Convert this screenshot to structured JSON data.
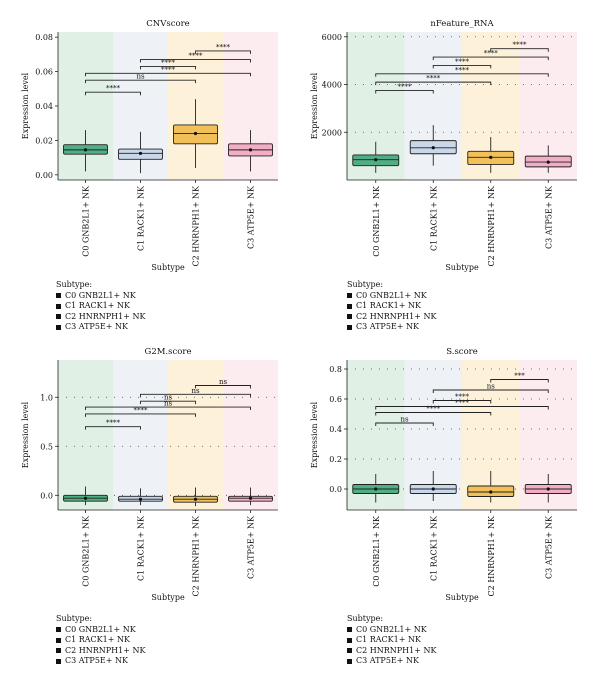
{
  "palette": {
    "fills": [
      "#4fae83",
      "#c9d7ea",
      "#f2c058",
      "#f4adc6"
    ],
    "bands": [
      "#e0f0e5",
      "#eef2f7",
      "#fdf1da",
      "#fcecef"
    ]
  },
  "legend_title": "Subtype:",
  "legend_items": [
    "C0 GNB2L1+ NK",
    "C1 RACK1+ NK",
    "C2 HNRNPH1+ NK",
    "C3 ATP5E+ NK"
  ],
  "chart_data": [
    {
      "type": "box",
      "title": "CNVscore",
      "xlabel": "Subtype",
      "ylabel": "Expression level",
      "categories": [
        "C0 GNB2L1+ NK",
        "C1 RACK1+ NK",
        "C2 HNRNPH1+ NK",
        "C3 ATP5E+ NK"
      ],
      "ylim": [
        -0.003,
        0.083
      ],
      "yticks": [
        0.0,
        0.02,
        0.04,
        0.06,
        0.08
      ],
      "ytick_labels": [
        "0.00",
        "0.02",
        "0.04",
        "0.06",
        "0.08"
      ],
      "grid": false,
      "boxes": [
        {
          "whisker_low": 0.002,
          "q1": 0.012,
          "median": 0.0145,
          "q3": 0.0175,
          "whisker_high": 0.026
        },
        {
          "whisker_low": 0.001,
          "q1": 0.009,
          "median": 0.0125,
          "q3": 0.015,
          "whisker_high": 0.025
        },
        {
          "whisker_low": 0.004,
          "q1": 0.018,
          "median": 0.024,
          "q3": 0.029,
          "whisker_high": 0.044
        },
        {
          "whisker_low": 0.002,
          "q1": 0.011,
          "median": 0.0145,
          "q3": 0.018,
          "whisker_high": 0.026
        }
      ],
      "comparisons": [
        {
          "from": 0,
          "to": 1,
          "y": 0.048,
          "label": "****"
        },
        {
          "from": 0,
          "to": 2,
          "y": 0.055,
          "label": "ns"
        },
        {
          "from": 0,
          "to": 3,
          "y": 0.059,
          "label": "****"
        },
        {
          "from": 1,
          "to": 2,
          "y": 0.063,
          "label": "****"
        },
        {
          "from": 1,
          "to": 3,
          "y": 0.067,
          "label": "****"
        },
        {
          "from": 2,
          "to": 3,
          "y": 0.072,
          "label": "****"
        }
      ]
    },
    {
      "type": "box",
      "title": "nFeature_RNA",
      "xlabel": "Subtype",
      "ylabel": "Expression level",
      "categories": [
        "C0 GNB2L1+ NK",
        "C1 RACK1+ NK",
        "C2 HNRNPH1+ NK",
        "C3 ATP5E+ NK"
      ],
      "ylim": [
        0,
        6200
      ],
      "yticks": [
        2000,
        4000,
        6000
      ],
      "ytick_labels": [
        "2000",
        "4000",
        "6000"
      ],
      "grid": true,
      "boxes": [
        {
          "whisker_low": 300,
          "q1": 600,
          "median": 850,
          "q3": 1050,
          "whisker_high": 1600
        },
        {
          "whisker_low": 600,
          "q1": 1100,
          "median": 1350,
          "q3": 1650,
          "whisker_high": 2300
        },
        {
          "whisker_low": 300,
          "q1": 650,
          "median": 950,
          "q3": 1200,
          "whisker_high": 1800
        },
        {
          "whisker_low": 300,
          "q1": 550,
          "median": 750,
          "q3": 1000,
          "whisker_high": 1450
        }
      ],
      "comparisons": [
        {
          "from": 0,
          "to": 1,
          "y": 3750,
          "label": "****"
        },
        {
          "from": 0,
          "to": 2,
          "y": 4100,
          "label": "****"
        },
        {
          "from": 0,
          "to": 3,
          "y": 4450,
          "label": "****"
        },
        {
          "from": 1,
          "to": 2,
          "y": 4800,
          "label": "****"
        },
        {
          "from": 1,
          "to": 3,
          "y": 5150,
          "label": "****"
        },
        {
          "from": 2,
          "to": 3,
          "y": 5500,
          "label": "****"
        }
      ]
    },
    {
      "type": "box",
      "title": "G2M.score",
      "xlabel": "Subtype",
      "ylabel": "Expression level",
      "categories": [
        "C0 GNB2L1+ NK",
        "C1 RACK1+ NK",
        "C2 HNRNPH1+ NK",
        "C3 ATP5E+ NK"
      ],
      "ylim": [
        -0.15,
        1.38
      ],
      "yticks": [
        0.0,
        0.5,
        1.0
      ],
      "ytick_labels": [
        "0.0",
        "0.5",
        "1.0"
      ],
      "grid": true,
      "boxes": [
        {
          "whisker_low": -0.1,
          "q1": -0.06,
          "median": -0.03,
          "q3": 0.0,
          "whisker_high": 0.09
        },
        {
          "whisker_low": -0.1,
          "q1": -0.06,
          "median": -0.04,
          "q3": -0.01,
          "whisker_high": 0.07
        },
        {
          "whisker_low": -0.11,
          "q1": -0.07,
          "median": -0.04,
          "q3": -0.01,
          "whisker_high": 0.08
        },
        {
          "whisker_low": -0.1,
          "q1": -0.06,
          "median": -0.03,
          "q3": -0.01,
          "whisker_high": 0.08
        }
      ],
      "comparisons": [
        {
          "from": 0,
          "to": 1,
          "y": 0.7,
          "label": "****"
        },
        {
          "from": 0,
          "to": 2,
          "y": 0.83,
          "label": "****"
        },
        {
          "from": 0,
          "to": 3,
          "y": 0.9,
          "label": "ns"
        },
        {
          "from": 1,
          "to": 2,
          "y": 0.96,
          "label": "ns"
        },
        {
          "from": 1,
          "to": 3,
          "y": 1.03,
          "label": "ns"
        },
        {
          "from": 2,
          "to": 3,
          "y": 1.12,
          "label": "ns"
        }
      ]
    },
    {
      "type": "box",
      "title": "S.score",
      "xlabel": "Subtype",
      "ylabel": "Expression level",
      "categories": [
        "C0 GNB2L1+ NK",
        "C1 RACK1+ NK",
        "C2 HNRNPH1+ NK",
        "C3 ATP5E+ NK"
      ],
      "ylim": [
        -0.14,
        0.86
      ],
      "yticks": [
        0.0,
        0.2,
        0.4,
        0.6,
        0.8
      ],
      "ytick_labels": [
        "0.0",
        "0.2",
        "0.4",
        "0.6",
        "0.8"
      ],
      "grid": true,
      "boxes": [
        {
          "whisker_low": -0.09,
          "q1": -0.03,
          "median": 0.0,
          "q3": 0.03,
          "whisker_high": 0.1
        },
        {
          "whisker_low": -0.08,
          "q1": -0.03,
          "median": 0.0,
          "q3": 0.03,
          "whisker_high": 0.12
        },
        {
          "whisker_low": -0.09,
          "q1": -0.05,
          "median": -0.02,
          "q3": 0.02,
          "whisker_high": 0.12
        },
        {
          "whisker_low": -0.09,
          "q1": -0.03,
          "median": 0.0,
          "q3": 0.03,
          "whisker_high": 0.1
        }
      ],
      "comparisons": [
        {
          "from": 0,
          "to": 1,
          "y": 0.44,
          "label": "ns"
        },
        {
          "from": 0,
          "to": 2,
          "y": 0.51,
          "label": "****"
        },
        {
          "from": 0,
          "to": 3,
          "y": 0.55,
          "label": "****"
        },
        {
          "from": 1,
          "to": 2,
          "y": 0.59,
          "label": "****"
        },
        {
          "from": 1,
          "to": 3,
          "y": 0.66,
          "label": "ns"
        },
        {
          "from": 2,
          "to": 3,
          "y": 0.73,
          "label": "***"
        }
      ]
    }
  ]
}
